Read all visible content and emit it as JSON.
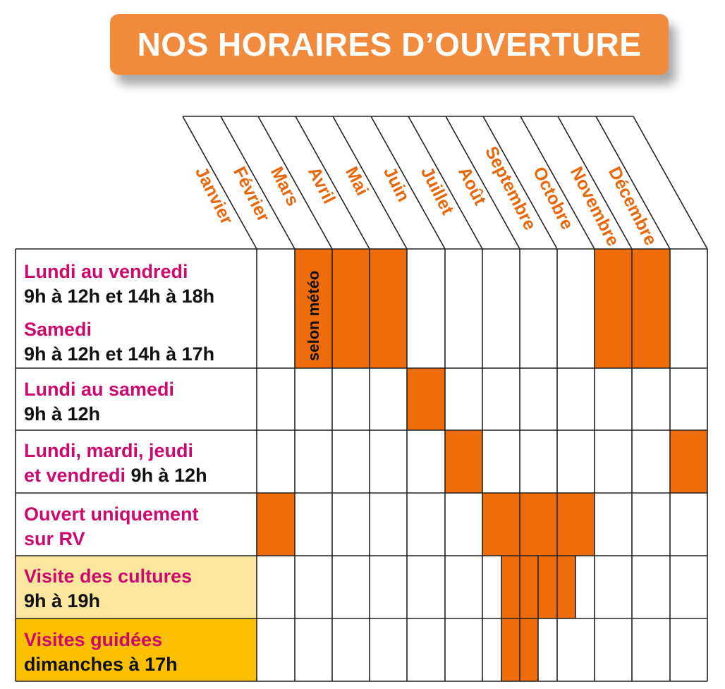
{
  "title": "NOS HORAIRES D’OUVERTURE",
  "months": [
    "Janvier",
    "Février",
    "Mars",
    "Avril",
    "Mai",
    "Juin",
    "Juillet",
    "Août",
    "Septembre",
    "Octobre",
    "Novembre",
    "Décembre"
  ],
  "rows": [
    {
      "lines": [
        [
          {
            "t": "Lundi au vendredi",
            "c": "pink"
          }
        ],
        [
          {
            "t": "9h à 12h et 14h à 18h",
            "c": "dark"
          }
        ],
        [
          {
            "t": "Samedi",
            "c": "pink"
          }
        ],
        [
          {
            "t": "9h à 12h et 14h à 17h",
            "c": "dark"
          }
        ]
      ]
    },
    {
      "lines": [
        [
          {
            "t": "Lundi au samedi",
            "c": "pink"
          }
        ],
        [
          {
            "t": "9h à 12h",
            "c": "dark"
          }
        ]
      ]
    },
    {
      "lines": [
        [
          {
            "t": "Lundi, mardi, jeudi",
            "c": "pink"
          }
        ],
        [
          {
            "t": "et vendredi ",
            "c": "pink"
          },
          {
            "t": "9h à 12h",
            "c": "dark"
          }
        ]
      ]
    },
    {
      "lines": [
        [
          {
            "t": "Ouvert uniquement",
            "c": "pink"
          }
        ],
        [
          {
            "t": "sur RV",
            "c": "pink"
          }
        ]
      ]
    },
    {
      "lines": [
        [
          {
            "t": "Visite des cultures",
            "c": "pink"
          }
        ],
        [
          {
            "t": "9h à 19h",
            "c": "dark"
          }
        ]
      ]
    },
    {
      "lines": [
        [
          {
            "t": "Visites guidées",
            "c": "pink"
          }
        ],
        [
          {
            "t": "dimanches à 17h",
            "c": "dark"
          }
        ]
      ]
    }
  ],
  "note": "selon météo",
  "colors": {
    "banner": "#f28a3c",
    "filled": "#ef6c0a",
    "month_text": "#e8670a",
    "pink_text": "#cc0a6e",
    "row_culture_bg": "#fde6a0",
    "row_guided_bg": "#fbc100"
  }
}
